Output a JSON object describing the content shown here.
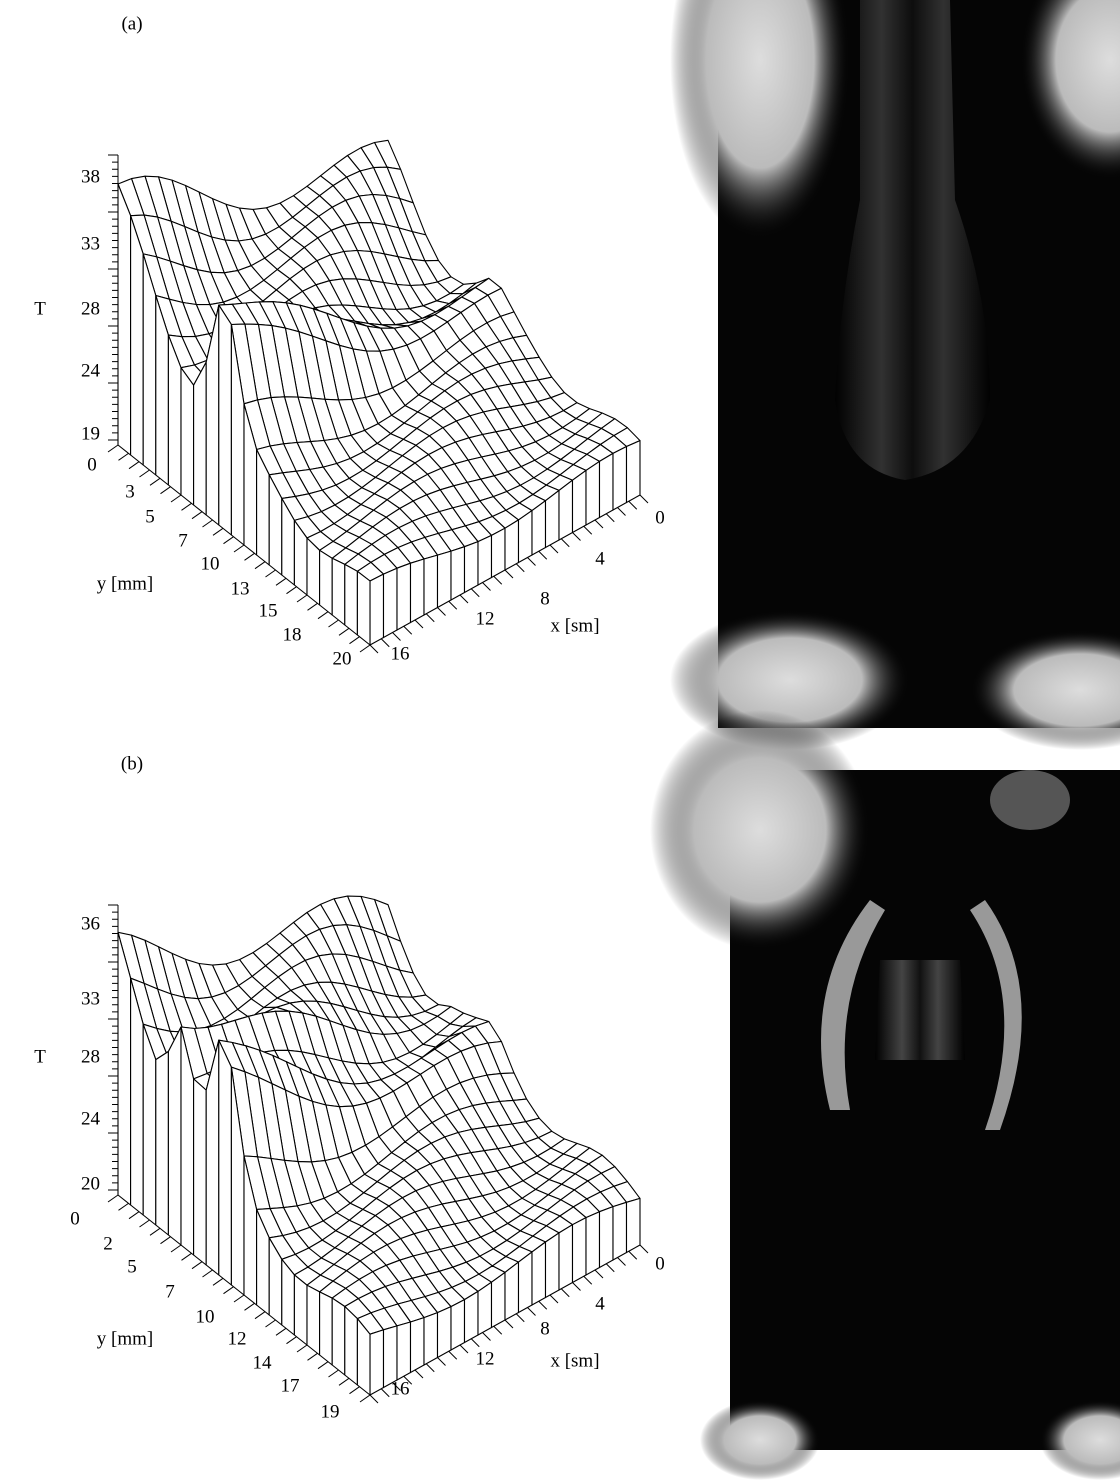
{
  "panels": [
    {
      "label": "(a)",
      "z_axis": {
        "title": "T",
        "ticks": [
          38,
          33,
          28,
          24,
          19
        ]
      },
      "y_axis": {
        "title": "y [mm]",
        "ticks": [
          0,
          3,
          5,
          7,
          10,
          13,
          15,
          18,
          20
        ]
      },
      "x_axis": {
        "title": "x [sm]",
        "ticks": [
          0,
          4,
          8,
          12,
          16
        ]
      }
    },
    {
      "label": "(b)",
      "z_axis": {
        "title": "T",
        "ticks": [
          36,
          33,
          28,
          24,
          20
        ]
      },
      "y_axis": {
        "title": "y [mm]",
        "ticks": [
          0,
          2,
          5,
          7,
          10,
          12,
          14,
          17,
          19
        ]
      },
      "x_axis": {
        "title": "x [sm]",
        "ticks": [
          0,
          4,
          8,
          12,
          16
        ]
      }
    }
  ]
}
